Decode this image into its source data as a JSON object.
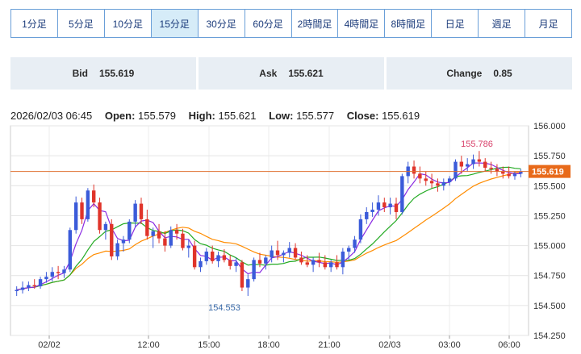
{
  "timeframes": [
    {
      "label": "1分足",
      "active": false
    },
    {
      "label": "5分足",
      "active": false
    },
    {
      "label": "10分足",
      "active": false
    },
    {
      "label": "15分足",
      "active": true
    },
    {
      "label": "30分足",
      "active": false
    },
    {
      "label": "60分足",
      "active": false
    },
    {
      "label": "2時間足",
      "active": false
    },
    {
      "label": "4時間足",
      "active": false
    },
    {
      "label": "8時間足",
      "active": false
    },
    {
      "label": "日足",
      "active": false
    },
    {
      "label": "週足",
      "active": false
    },
    {
      "label": "月足",
      "active": false
    }
  ],
  "quote": {
    "bid_label": "Bid",
    "bid": "155.619",
    "ask_label": "Ask",
    "ask": "155.621",
    "change_label": "Change",
    "change": "0.85"
  },
  "ohlc": {
    "datetime": "2026/02/03 06:45",
    "open_label": "Open:",
    "open": "155.579",
    "high_label": "High:",
    "high": "155.621",
    "low_label": "Low:",
    "low": "155.577",
    "close_label": "Close:",
    "close": "155.619"
  },
  "chart_data": {
    "type": "candlestick",
    "y_ticks": [
      "156.000",
      "155.750",
      "155.500",
      "155.250",
      "155.000",
      "154.750",
      "154.500",
      "154.250"
    ],
    "y_range": [
      154.25,
      156.0
    ],
    "x_ticks": [
      "02/02",
      "12:00",
      "15:00",
      "18:00",
      "21:00",
      "02/03",
      "03:00",
      "06:00"
    ],
    "current_price": "155.619",
    "high_marker": "155.786",
    "low_marker": "154.553",
    "colors": {
      "up": "#3b5bd9",
      "down": "#e0342a",
      "ma_short": "#8a2be2",
      "ma_mid": "#22aa22",
      "ma_long": "#ff8c00",
      "price_line": "#e07030",
      "price_tag": "#e86a1a"
    },
    "candles": [
      [
        154.62,
        154.66,
        154.58,
        154.63
      ],
      [
        154.63,
        154.7,
        154.6,
        154.65
      ],
      [
        154.65,
        154.7,
        154.62,
        154.67
      ],
      [
        154.67,
        154.72,
        154.64,
        154.66
      ],
      [
        154.66,
        154.74,
        154.64,
        154.72
      ],
      [
        154.72,
        154.78,
        154.69,
        154.74
      ],
      [
        154.74,
        154.82,
        154.7,
        154.78
      ],
      [
        154.78,
        154.83,
        154.72,
        154.77
      ],
      [
        154.77,
        154.83,
        154.73,
        154.8
      ],
      [
        154.8,
        155.15,
        154.78,
        155.13
      ],
      [
        155.13,
        155.41,
        155.1,
        155.36
      ],
      [
        155.36,
        155.4,
        155.18,
        155.22
      ],
      [
        155.22,
        155.48,
        155.2,
        155.46
      ],
      [
        155.46,
        155.51,
        155.32,
        155.36
      ],
      [
        155.36,
        155.4,
        155.1,
        155.13
      ],
      [
        155.13,
        155.2,
        155.05,
        155.18
      ],
      [
        155.18,
        155.22,
        154.88,
        154.91
      ],
      [
        154.91,
        155.05,
        154.88,
        155.02
      ],
      [
        155.02,
        155.08,
        154.95,
        155.05
      ],
      [
        155.05,
        155.22,
        155.02,
        155.2
      ],
      [
        155.2,
        155.38,
        155.15,
        155.35
      ],
      [
        155.35,
        155.4,
        155.18,
        155.22
      ],
      [
        155.22,
        155.3,
        155.05,
        155.08
      ],
      [
        155.08,
        155.15,
        154.98,
        155.12
      ],
      [
        155.12,
        155.18,
        155.02,
        155.06
      ],
      [
        155.06,
        155.12,
        154.95,
        155.0
      ],
      [
        155.0,
        155.16,
        154.98,
        155.13
      ],
      [
        155.13,
        155.18,
        155.05,
        155.1
      ],
      [
        155.1,
        155.14,
        154.96,
        154.98
      ],
      [
        154.98,
        155.05,
        154.9,
        155.0
      ],
      [
        155.0,
        155.04,
        154.8,
        154.82
      ],
      [
        154.82,
        154.9,
        154.78,
        154.87
      ],
      [
        154.87,
        154.98,
        154.84,
        154.95
      ],
      [
        154.95,
        155.0,
        154.85,
        154.87
      ],
      [
        154.87,
        154.95,
        154.82,
        154.92
      ],
      [
        154.92,
        154.97,
        154.86,
        154.88
      ],
      [
        154.88,
        154.92,
        154.8,
        154.83
      ],
      [
        154.83,
        154.9,
        154.78,
        154.86
      ],
      [
        154.86,
        154.88,
        154.62,
        154.65
      ],
      [
        154.65,
        154.76,
        154.58,
        154.72
      ],
      [
        154.72,
        154.9,
        154.7,
        154.88
      ],
      [
        154.88,
        154.94,
        154.82,
        154.85
      ],
      [
        154.85,
        154.92,
        154.8,
        154.9
      ],
      [
        154.9,
        155.0,
        154.86,
        154.96
      ],
      [
        154.96,
        155.04,
        154.88,
        154.92
      ],
      [
        154.92,
        154.96,
        154.86,
        154.94
      ],
      [
        154.94,
        155.03,
        154.9,
        154.98
      ],
      [
        154.98,
        155.02,
        154.88,
        154.9
      ],
      [
        154.9,
        154.95,
        154.84,
        154.86
      ],
      [
        154.86,
        154.92,
        154.82,
        154.84
      ],
      [
        154.84,
        154.9,
        154.78,
        154.88
      ],
      [
        154.88,
        154.94,
        154.82,
        154.86
      ],
      [
        154.86,
        154.92,
        154.8,
        154.82
      ],
      [
        154.82,
        154.88,
        154.78,
        154.86
      ],
      [
        154.86,
        154.92,
        154.8,
        154.82
      ],
      [
        154.82,
        154.98,
        154.76,
        154.95
      ],
      [
        154.95,
        155.0,
        154.88,
        154.98
      ],
      [
        154.98,
        155.08,
        154.94,
        155.05
      ],
      [
        155.05,
        155.26,
        155.02,
        155.22
      ],
      [
        155.22,
        155.32,
        155.18,
        155.28
      ],
      [
        155.28,
        155.36,
        155.24,
        155.3
      ],
      [
        155.3,
        155.42,
        155.25,
        155.36
      ],
      [
        155.36,
        155.4,
        155.28,
        155.32
      ],
      [
        155.32,
        155.4,
        155.26,
        155.35
      ],
      [
        155.35,
        155.4,
        155.22,
        155.28
      ],
      [
        155.28,
        155.6,
        155.26,
        155.58
      ],
      [
        155.58,
        155.7,
        155.52,
        155.66
      ],
      [
        155.66,
        155.71,
        155.56,
        155.6
      ],
      [
        155.6,
        155.66,
        155.52,
        155.56
      ],
      [
        155.56,
        155.62,
        155.5,
        155.54
      ],
      [
        155.54,
        155.6,
        155.48,
        155.52
      ],
      [
        155.52,
        155.56,
        155.45,
        155.5
      ],
      [
        155.5,
        155.56,
        155.46,
        155.53
      ],
      [
        155.53,
        155.58,
        155.5,
        155.56
      ],
      [
        155.56,
        155.72,
        155.54,
        155.7
      ],
      [
        155.7,
        155.75,
        155.6,
        155.66
      ],
      [
        155.66,
        155.73,
        155.62,
        155.68
      ],
      [
        155.68,
        155.76,
        155.64,
        155.72
      ],
      [
        155.72,
        155.79,
        155.66,
        155.7
      ],
      [
        155.7,
        155.73,
        155.62,
        155.65
      ],
      [
        155.65,
        155.7,
        155.6,
        155.64
      ],
      [
        155.64,
        155.68,
        155.58,
        155.62
      ],
      [
        155.62,
        155.66,
        155.56,
        155.6
      ],
      [
        155.6,
        155.66,
        155.56,
        155.58
      ],
      [
        155.58,
        155.62,
        155.55,
        155.6
      ],
      [
        155.6,
        155.64,
        155.57,
        155.62
      ]
    ]
  }
}
